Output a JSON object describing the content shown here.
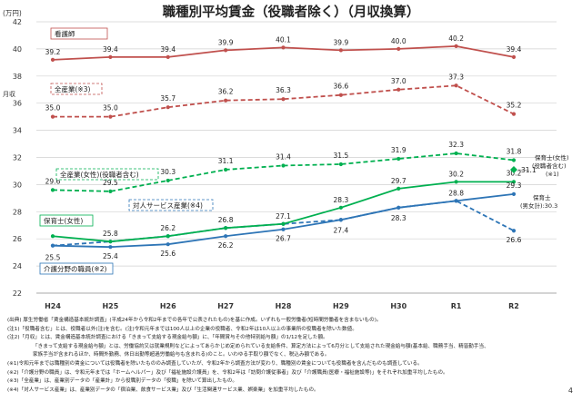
{
  "title": "職種別平均賃金（役職者除く）（月収換算）",
  "y_unit_label": "(万円)",
  "y_side_label": "月収",
  "page_number": "4",
  "chart_data": {
    "type": "line",
    "categories": [
      "H24",
      "H25",
      "H26",
      "H27",
      "H28",
      "H29",
      "H30",
      "R1",
      "R2"
    ],
    "ylim": [
      22,
      42
    ],
    "yticks": [
      22,
      24,
      26,
      28,
      30,
      32,
      34,
      36,
      38,
      40,
      42
    ],
    "grid": true,
    "series": [
      {
        "name": "看護師",
        "color": "#c0504d",
        "dash": false,
        "values": [
          39.2,
          39.4,
          39.4,
          39.9,
          40.1,
          39.9,
          40.0,
          40.2,
          39.4
        ],
        "labels": [
          "39.2",
          "39.4",
          "39.4",
          "39.9",
          "40.1",
          "39.9",
          "40.0",
          "40.2",
          "39.4"
        ]
      },
      {
        "name": "全産業",
        "note": "(※3)",
        "color": "#c0504d",
        "dash": true,
        "values": [
          35.0,
          35.0,
          35.7,
          36.2,
          36.3,
          36.6,
          37.0,
          37.3,
          35.2
        ],
        "labels": [
          "35.0",
          "35.0",
          "35.7",
          "36.2",
          "36.3",
          "36.6",
          "37.0",
          "37.3",
          "35.2"
        ]
      },
      {
        "name": "全産業(女性)(役職者含む)",
        "color": "#00b050",
        "dash": true,
        "values": [
          29.6,
          29.5,
          30.3,
          31.1,
          31.4,
          31.5,
          31.9,
          32.3,
          31.8
        ],
        "labels": [
          "29.6",
          "29.5",
          "30.3",
          "31.1",
          "31.4",
          "31.5",
          "31.9",
          "32.3",
          "31.8"
        ]
      },
      {
        "name": "対人サービス産業",
        "note": "(※4)",
        "color": "#2e75b6",
        "dash": true,
        "values": [
          25.5,
          25.8,
          26.2,
          26.8,
          27.1,
          27.4,
          28.3,
          28.8,
          26.6
        ],
        "labels": [
          "25.5",
          "25.8",
          "26.2",
          "26.8",
          "27.1",
          "27.4",
          "28.3",
          "28.8",
          "26.6"
        ]
      },
      {
        "name": "保育士(女性)",
        "color": "#00b050",
        "dash": false,
        "values": [
          26.2,
          25.8,
          26.2,
          26.8,
          27.1,
          28.3,
          29.7,
          30.2,
          30.2
        ],
        "labels": [
          "",
          "",
          "",
          "",
          "",
          "28.3",
          "29.7",
          "30.2",
          "30.2"
        ]
      },
      {
        "name": "介護分野の職員",
        "note": "(※2)",
        "color": "#2e75b6",
        "dash": false,
        "values": [
          25.5,
          25.4,
          25.6,
          26.2,
          26.7,
          27.4,
          28.3,
          28.8,
          29.3
        ],
        "labels": [
          "",
          "25.4",
          "25.6",
          "26.2",
          "26.7",
          "",
          "",
          "",
          "29.3"
        ]
      }
    ],
    "marker_annotations": [
      {
        "text": "保育士(女性)(役職者含む)(※1)",
        "value": 31.1
      },
      {
        "text": "保育士(男女計):30.3",
        "value": 30.3
      }
    ]
  },
  "notes": [
    "(出典) 厚生労働省「賃金構造基本統計調査」(平成24年から令和2年までの各年で公表されたもの)を基に作成。いずれも一般労働者(短時間労働者を含まないもの)。",
    "(注1)「役職者含む」とは、役職者以外(注)を含む。(注)令和元年までは100人以上の企業の役職者、令和2年は10人以上の事業所の役職者を除いた数値。",
    "(注2)「月収」とは、賃金構造基本統計調査における「きまって支給する現金給与額」に、「年間賞与その他特別給与額」の1/12を足した額。",
    "「きまって支給する現金給与額」とは、労働協約又は就業規則などによってあらかじめ定められている支給条件、算定方法によって6月分として支給された現金給与額(基本給、職務手当、精皆勤手当、",
    "家族手当が含まれるほか、時間外勤務、休日出勤等超過労働給与も含まれる)のこと。いわゆる手取り額でなく、税込み額である。",
    "(※1)令和元年までは職種別の賃金については役職者を除いたもののみ調査していたが、令和2年から調査方法が変わり、職種別の賃金についても役職者を含んだものも調査している。",
    "(※2)「介護分野の職員」は、令和元年までは「ホームヘルパー」及び「福祉施設介護員」を、令和2年は「訪問介護従事者」及び「介護職員(医療・福祉施設等)」をそれぞれ加重平均したもの。",
    "(※3)「全産業」は、産業別データの「産業計」から役職別データの「役職」を除いて算出したもの。",
    "(※4)「対人サービス産業」は、産業別データの「宿泊業、飲食サービス業」及び「生活関連サービス業、娯楽業」を加重平均したもの。"
  ]
}
